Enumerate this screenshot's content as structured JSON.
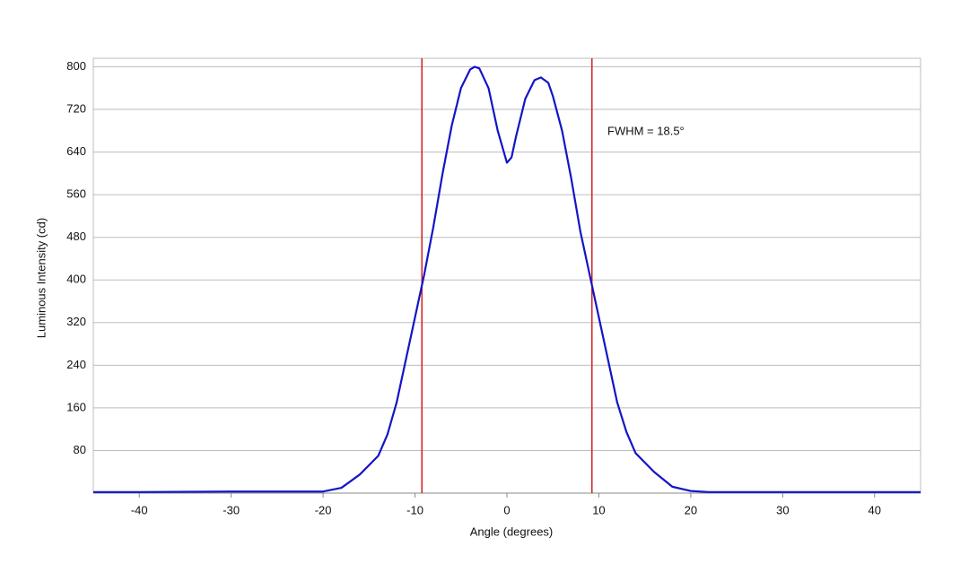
{
  "chart_data": {
    "type": "line",
    "x_label": "Angle (degrees)",
    "y_label": "Luminous Intensity (cd)",
    "annotation": "FWHM = 18.5°",
    "vlines": [
      -9.25,
      9.25
    ],
    "vline_color": "#d42020",
    "x": [
      -45,
      -40,
      -30,
      -25,
      -20,
      -18,
      -16,
      -14,
      -13,
      -12,
      -11,
      -10,
      -9,
      -8,
      -7,
      -6,
      -5,
      -4,
      -3.5,
      -3,
      -2,
      -1,
      0,
      0.5,
      1,
      2,
      3,
      3.7,
      4.5,
      5,
      6,
      7,
      8,
      9,
      10,
      11,
      12,
      13,
      14,
      16,
      18,
      20,
      22,
      30,
      40,
      45
    ],
    "series": [
      {
        "color": "#1414c8",
        "values": [
          2,
          2,
          3,
          3,
          3,
          10,
          35,
          70,
          110,
          170,
          250,
          330,
          410,
          500,
          600,
          690,
          760,
          795,
          800,
          797,
          760,
          680,
          620,
          630,
          670,
          740,
          775,
          780,
          770,
          745,
          680,
          590,
          490,
          410,
          330,
          250,
          170,
          115,
          75,
          40,
          12,
          4,
          2,
          2,
          2,
          2
        ]
      }
    ],
    "xlim": [
      -45,
      45
    ],
    "ylim": [
      0,
      816
    ],
    "xticks": [
      -40,
      -30,
      -20,
      -10,
      0,
      10,
      20,
      30,
      40
    ],
    "yticks": [
      80,
      160,
      240,
      320,
      400,
      480,
      560,
      640,
      720,
      800
    ],
    "grid": true
  }
}
